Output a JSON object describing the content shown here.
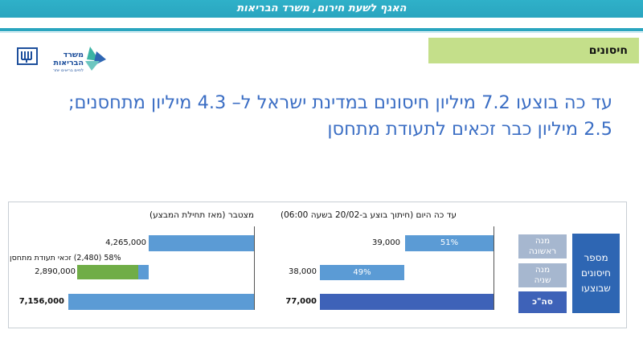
{
  "header": {
    "title": "האגף לשעת חירום, משרד הבריאות"
  },
  "section": {
    "tag": "חיסונים"
  },
  "logo": {
    "text_main": "משרד\nהבריאות",
    "text_sub": "לחיים בריאים יותר"
  },
  "headline": {
    "line1": "עד כה בוצעו 7.2 מיליון חיסונים במדינת ישראל ל– 4.3 מיליון מתחסנים;",
    "line2": "2.5 מיליון כבר זכאים לתעודת מתחסן"
  },
  "dashboard": {
    "main_title": "מספר\nחיסונים\nשבוצעו",
    "row_labels": {
      "first_dose": "מנה\nראשונה",
      "second_dose": "מנה\nשניה",
      "total": "סה\"כ"
    },
    "today_panel": {
      "title": "עד כה היום (חיתוך בוצע ב-20/02 בשעה 06:00)",
      "first_dose": {
        "value": "39,000",
        "percent": "51%",
        "percent_value": 51
      },
      "second_dose": {
        "value": "38,000",
        "percent": "49%",
        "percent_value": 49
      },
      "total": {
        "value": "77,000"
      }
    },
    "cumulative_panel": {
      "title": "מצטבר (מאז תחילת המבצע)",
      "first_dose": {
        "value": "4,265,000"
      },
      "second_dose": {
        "value": "2,890,000"
      },
      "total": {
        "value": "7,156,000"
      },
      "certificate_note": "58% (2,480) זכאי תעודת מתחסן",
      "certificate_share": 0.858
    }
  },
  "colors": {
    "header": "#2aa5bf",
    "section_tag": "#c4df8a",
    "headline": "#3b6ec4",
    "bar_light": "#5b9bd5",
    "bar_dark": "#3e62b8",
    "green": "#70ad47",
    "side_button": "#a6b7cf"
  }
}
